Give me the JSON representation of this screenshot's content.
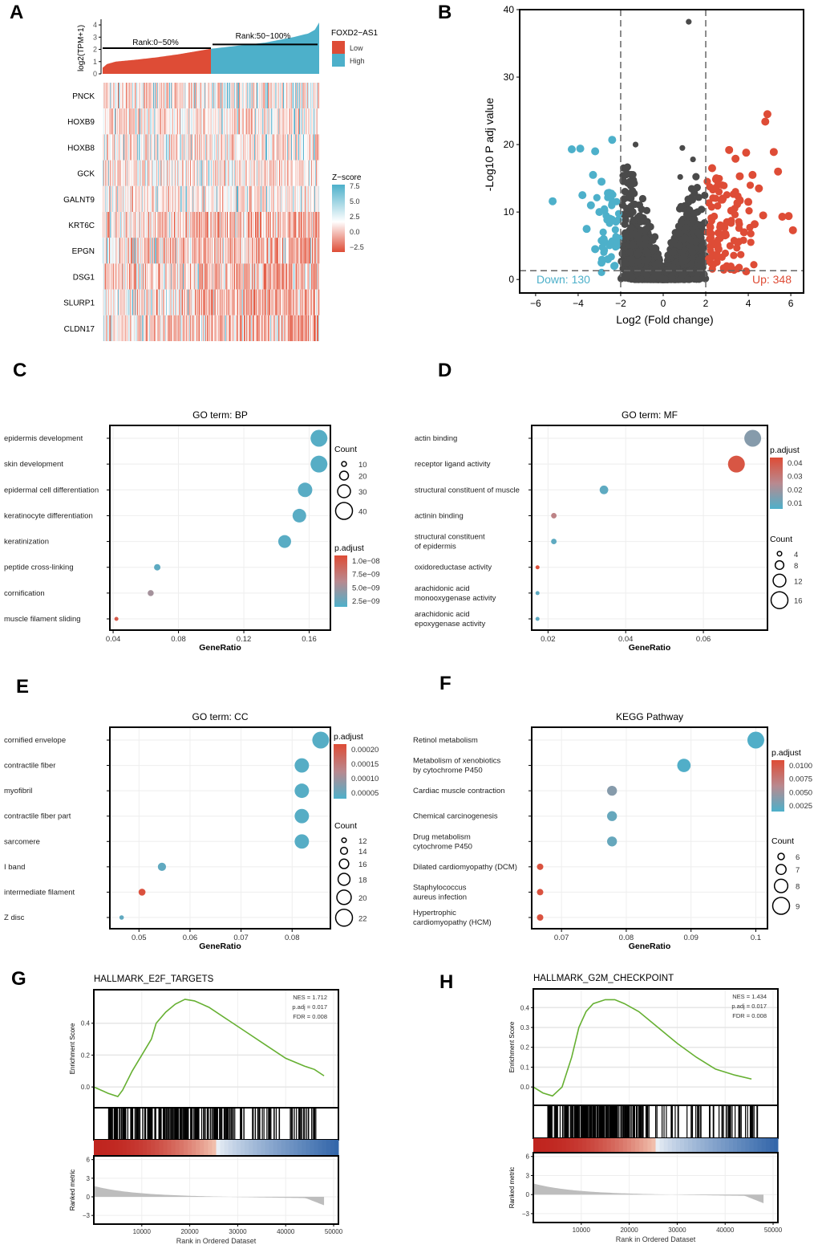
{
  "panel_labels": [
    "A",
    "B",
    "C",
    "D",
    "E",
    "F",
    "G",
    "H"
  ],
  "colors": {
    "red": "#DE4C36",
    "blue": "#4DB0CA",
    "dark": "#4A4A4A",
    "green": "#66B032",
    "mauve": "#B98A8F"
  },
  "chart_data": [
    {
      "id": "A",
      "type": "heatmap",
      "bar": {
        "ylabel": "log2(TPM+1)",
        "yticks": [
          0,
          1,
          2,
          3,
          4
        ],
        "ylim": [
          0,
          4.2
        ],
        "low_label": "Rank:0~50%",
        "high_label": "Rank:50~100%",
        "low_line": 2.1,
        "high_line": 2.4,
        "ranked_quantiles": [
          [
            0,
            0.5
          ],
          [
            0.02,
            0.8
          ],
          [
            0.06,
            1.0
          ],
          [
            0.15,
            1.15
          ],
          [
            0.25,
            1.35
          ],
          [
            0.35,
            1.6
          ],
          [
            0.5,
            2.05
          ],
          [
            0.6,
            2.25
          ],
          [
            0.75,
            2.55
          ],
          [
            0.88,
            3.0
          ],
          [
            0.95,
            3.3
          ],
          [
            0.98,
            3.6
          ],
          [
            1.0,
            4.2
          ]
        ]
      },
      "legend": {
        "title": "FOXD2−AS1",
        "items": [
          {
            "label": "Low",
            "color": "#DE4C36"
          },
          {
            "label": "High",
            "color": "#4DB0CA"
          }
        ]
      },
      "genes": [
        "PNCK",
        "HOXB9",
        "HOXB8",
        "GCK",
        "GALNT9",
        "KRT6C",
        "EPGN",
        "DSG1",
        "SLURP1",
        "CLDN17"
      ],
      "zscore_legend": {
        "title": "Z−score",
        "ticks": [
          "7.5",
          "5.0",
          "2.5",
          "0.0",
          "−2.5"
        ]
      }
    },
    {
      "id": "B",
      "type": "scatter",
      "xlabel": "Log2 (Fold change)",
      "ylabel": "-Log10 P adj value",
      "xlim": [
        -6.75,
        6.6
      ],
      "ylim": [
        -2,
        40
      ],
      "xticks": [
        -6,
        -4,
        -2,
        0,
        2,
        4,
        6
      ],
      "yticks": [
        0,
        10,
        20,
        30,
        40
      ],
      "fc_cutoff": [
        -2,
        2
      ],
      "p_cutoff": 1.3,
      "down_label": "Down: 130",
      "up_label": "Up: 348",
      "down_count": 130,
      "up_count": 348,
      "highlight_points": {
        "up": [
          [
            4.9,
            24.5
          ],
          [
            4.8,
            23.4
          ],
          [
            5.2,
            18.9
          ],
          [
            5.4,
            16
          ],
          [
            5.6,
            9.3
          ],
          [
            5.9,
            9.4
          ],
          [
            6.1,
            7.3
          ],
          [
            3.9,
            18.8
          ],
          [
            3.1,
            19.2
          ],
          [
            3.4,
            17.9
          ],
          [
            3.6,
            15.3
          ],
          [
            4.2,
            15.5
          ],
          [
            4.5,
            13.5
          ],
          [
            4.0,
            11.5
          ],
          [
            3.2,
            10.2
          ],
          [
            4.7,
            9.5
          ],
          [
            2.8,
            12
          ],
          [
            2.5,
            15
          ],
          [
            2.3,
            16.5
          ],
          [
            3.0,
            8.5
          ],
          [
            3.8,
            7.0
          ],
          [
            4.3,
            8.2
          ],
          [
            2.2,
            6.0
          ],
          [
            2.6,
            4.5
          ],
          [
            3.5,
            5.5
          ],
          [
            3.9,
            1.2
          ]
        ],
        "down": [
          [
            -5.2,
            11.6
          ],
          [
            -4.3,
            19.3
          ],
          [
            -3.9,
            19.4
          ],
          [
            -3.2,
            19
          ],
          [
            -2.4,
            20.7
          ],
          [
            -3.3,
            15.5
          ],
          [
            -2.9,
            14.5
          ],
          [
            -3.8,
            12.5
          ],
          [
            -2.6,
            12.8
          ],
          [
            -3.4,
            11
          ],
          [
            -3.0,
            10
          ],
          [
            -2.5,
            9
          ],
          [
            -3.6,
            7.5
          ],
          [
            -2.8,
            6
          ],
          [
            -2.2,
            5
          ],
          [
            -3.2,
            4.5
          ],
          [
            -2.6,
            3
          ],
          [
            -2.9,
            2.5
          ],
          [
            -2.3,
            2
          ]
        ],
        "top_ns": [
          [
            1.2,
            38.2
          ],
          [
            -1.3,
            20
          ],
          [
            0.9,
            19.5
          ],
          [
            1.4,
            17.8
          ],
          [
            0.8,
            15.2
          ]
        ]
      },
      "ns_point_count": 3000
    },
    {
      "id": "C",
      "type": "scatter",
      "title": "GO term: BP",
      "xlabel": "GeneRatio",
      "xlim": [
        0.038,
        0.173
      ],
      "xticks": [
        0.04,
        0.08,
        0.12,
        0.16
      ],
      "terms": [
        {
          "term": "epidermis development",
          "ratio": 0.166,
          "count": 40,
          "padj": 2.2e-09
        },
        {
          "term": "skin development",
          "ratio": 0.166,
          "count": 40,
          "padj": 2.2e-09
        },
        {
          "term": "epidermal cell differentiation",
          "ratio": 0.1575,
          "count": 34,
          "padj": 2.3e-09
        },
        {
          "term": "keratinocyte differentiation",
          "ratio": 0.154,
          "count": 32,
          "padj": 2.3e-09
        },
        {
          "term": "keratinization",
          "ratio": 0.145,
          "count": 30,
          "padj": 2.3e-09
        },
        {
          "term": "peptide cross-linking",
          "ratio": 0.067,
          "count": 14,
          "padj": 2.5e-09
        },
        {
          "term": "cornification",
          "ratio": 0.063,
          "count": 13,
          "padj": 5.5e-09
        },
        {
          "term": "muscle filament sliding",
          "ratio": 0.042,
          "count": 8,
          "padj": 1e-08
        }
      ],
      "size_legend": {
        "title": "Count",
        "values": [
          10,
          20,
          30,
          40
        ]
      },
      "color_legend": {
        "title": "p.adjust",
        "ticks": [
          "1.0e−08",
          "7.5e−09",
          "5.0e−09",
          "2.5e−09"
        ],
        "range": [
          1.8e-09,
          1.1e-08
        ]
      }
    },
    {
      "id": "D",
      "type": "scatter",
      "title": "GO term: MF",
      "xlabel": "GeneRatio",
      "xlim": [
        0.0158,
        0.0765
      ],
      "xticks": [
        0.02,
        0.04,
        0.06
      ],
      "terms": [
        {
          "term": "actin binding",
          "ratio": 0.0727,
          "count": 16,
          "padj": 0.015
        },
        {
          "term": "receptor ligand activity",
          "ratio": 0.0685,
          "count": 16,
          "padj": 0.04
        },
        {
          "term": "structural constituent of muscle",
          "ratio": 0.0344,
          "count": 8,
          "padj": 0.008
        },
        {
          "term": "actinin binding",
          "ratio": 0.0215,
          "count": 5,
          "padj": 0.026
        },
        {
          "term": "structural constituent\nof epidermis",
          "ratio": 0.0215,
          "count": 5,
          "padj": 0.008
        },
        {
          "term": "oxidoreductase activity",
          "ratio": 0.0173,
          "count": 3,
          "padj": 0.042
        },
        {
          "term": "arachidonic acid\nmonooxygenase activity",
          "ratio": 0.0173,
          "count": 3,
          "padj": 0.008
        },
        {
          "term": "arachidonic acid\nepoxygenase activity",
          "ratio": 0.0173,
          "count": 3,
          "padj": 0.008
        }
      ],
      "size_legend": {
        "title": "Count",
        "values": [
          4,
          8,
          12,
          16
        ]
      },
      "color_legend": {
        "title": "p.adjust",
        "ticks": [
          "0.04",
          "0.03",
          "0.02",
          "0.01"
        ],
        "range": [
          0.005,
          0.043
        ]
      }
    },
    {
      "id": "E",
      "type": "scatter",
      "title": "GO term: CC",
      "xlabel": "GeneRatio",
      "xlim": [
        0.0443,
        0.0875
      ],
      "xticks": [
        0.05,
        0.06,
        0.07,
        0.08
      ],
      "terms": [
        {
          "term": "cornified envelope",
          "ratio": 0.0856,
          "count": 22,
          "padj": 1e-05
        },
        {
          "term": "contractile fiber",
          "ratio": 0.0819,
          "count": 20,
          "padj": 1e-05
        },
        {
          "term": "myofibril",
          "ratio": 0.0819,
          "count": 20,
          "padj": 1e-05
        },
        {
          "term": "contractile fiber part",
          "ratio": 0.0819,
          "count": 20,
          "padj": 1e-05
        },
        {
          "term": "sarcomere",
          "ratio": 0.0819,
          "count": 20,
          "padj": 1e-05
        },
        {
          "term": "I band",
          "ratio": 0.0545,
          "count": 15,
          "padj": 2e-05
        },
        {
          "term": "intermediate filament",
          "ratio": 0.0506,
          "count": 14,
          "padj": 0.00022
        },
        {
          "term": "Z disc",
          "ratio": 0.0466,
          "count": 12,
          "padj": 2e-05
        }
      ],
      "size_legend": {
        "title": "Count",
        "values": [
          12,
          14,
          16,
          18,
          20,
          22
        ]
      },
      "color_legend": {
        "title": "p.adjust",
        "ticks": [
          "0.00020",
          "0.00015",
          "0.00010",
          "0.00005"
        ],
        "range": [
          0.0,
          0.00023
        ]
      }
    },
    {
      "id": "F",
      "type": "scatter",
      "title": "KEGG Pathway",
      "xlabel": "GeneRatio",
      "xlim": [
        0.0654,
        0.1018
      ],
      "xticks": [
        0.07,
        0.08,
        0.09,
        0.1
      ],
      "terms": [
        {
          "term": "Retinol metabolism",
          "ratio": 0.1,
          "count": 9,
          "padj": 0.001
        },
        {
          "term": "Metabolism of xenobiotics\nby cytochrome P450",
          "ratio": 0.0889,
          "count": 8,
          "padj": 0.001
        },
        {
          "term": "Cardiac muscle contraction",
          "ratio": 0.0778,
          "count": 7,
          "padj": 0.0035
        },
        {
          "term": "Chemical carcinogenesis",
          "ratio": 0.0778,
          "count": 7,
          "padj": 0.002
        },
        {
          "term": "Drug metabolism\ncytochrome P450",
          "ratio": 0.0778,
          "count": 7,
          "padj": 0.002
        },
        {
          "term": "Dilated cardiomyopathy (DCM)",
          "ratio": 0.0667,
          "count": 6,
          "padj": 0.0105
        },
        {
          "term": "Staphylococcus\naureus infection",
          "ratio": 0.0667,
          "count": 6,
          "padj": 0.0105
        },
        {
          "term": "Hypertrophic\ncardiomyopathy (HCM)",
          "ratio": 0.0667,
          "count": 6,
          "padj": 0.0105
        }
      ],
      "size_legend": {
        "title": "Count",
        "values": [
          6,
          7,
          8,
          9
        ]
      },
      "color_legend": {
        "title": "p.adjust",
        "ticks": [
          "0.0100",
          "0.0075",
          "0.0050",
          "0.0025"
        ],
        "range": [
          0.0008,
          0.011
        ]
      }
    },
    {
      "id": "G",
      "type": "line",
      "title": "HALLMARK_E2F_TARGETS",
      "stats": [
        "NES = 1.712",
        "p.adj = 0.017",
        "FDR = 0.008"
      ],
      "ylabel": "Enrichment Score",
      "ylabel2": "Ranked metric",
      "xlabel": "Rank in Ordered Dataset",
      "xlim": [
        0,
        51000
      ],
      "ylim": [
        -0.09,
        0.58
      ],
      "yticks": [
        "0.0",
        "0.2",
        "0.4"
      ],
      "ytick_values": [
        0,
        0.2,
        0.4
      ],
      "rank_ticks": [
        6,
        3,
        0,
        -3
      ],
      "xticks": [
        10000,
        20000,
        30000,
        40000,
        50000
      ],
      "es_curve": [
        [
          0,
          0
        ],
        [
          3000,
          -0.04
        ],
        [
          5000,
          -0.06
        ],
        [
          6000,
          -0.02
        ],
        [
          8000,
          0.1
        ],
        [
          10000,
          0.2
        ],
        [
          12000,
          0.3
        ],
        [
          13000,
          0.4
        ],
        [
          15000,
          0.47
        ],
        [
          17000,
          0.52
        ],
        [
          19000,
          0.55
        ],
        [
          21000,
          0.54
        ],
        [
          24000,
          0.5
        ],
        [
          28000,
          0.42
        ],
        [
          32000,
          0.34
        ],
        [
          36000,
          0.26
        ],
        [
          40000,
          0.18
        ],
        [
          44000,
          0.13
        ],
        [
          46000,
          0.11
        ],
        [
          48000,
          0.07
        ]
      ],
      "hit_density_end": 29000
    },
    {
      "id": "H",
      "type": "line",
      "title": "HALLMARK_G2M_CHECKPOINT",
      "stats": [
        "NES = 1.434",
        "p.adj = 0.017",
        "FDR = 0.008"
      ],
      "ylabel": "Enrichment Score",
      "ylabel2": "Ranked metric",
      "xlabel": "Rank in Ordered Dataset",
      "xlim": [
        0,
        51000
      ],
      "ylim": [
        -0.06,
        0.47
      ],
      "yticks": [
        "0.0",
        "0.1",
        "0.2",
        "0.3",
        "0.4"
      ],
      "ytick_values": [
        0,
        0.1,
        0.2,
        0.3,
        0.4
      ],
      "rank_ticks": [
        6,
        3,
        0,
        -3
      ],
      "xticks": [
        10000,
        20000,
        30000,
        40000,
        50000
      ],
      "es_curve": [
        [
          0,
          0
        ],
        [
          2000,
          -0.03
        ],
        [
          4000,
          -0.045
        ],
        [
          6000,
          0
        ],
        [
          8000,
          0.15
        ],
        [
          9500,
          0.3
        ],
        [
          11000,
          0.38
        ],
        [
          12500,
          0.42
        ],
        [
          15000,
          0.44
        ],
        [
          17000,
          0.44
        ],
        [
          19000,
          0.42
        ],
        [
          22000,
          0.38
        ],
        [
          26000,
          0.3
        ],
        [
          30000,
          0.22
        ],
        [
          34000,
          0.15
        ],
        [
          38000,
          0.09
        ],
        [
          42000,
          0.06
        ],
        [
          45500,
          0.04
        ]
      ],
      "hit_density_end": 23000
    }
  ]
}
